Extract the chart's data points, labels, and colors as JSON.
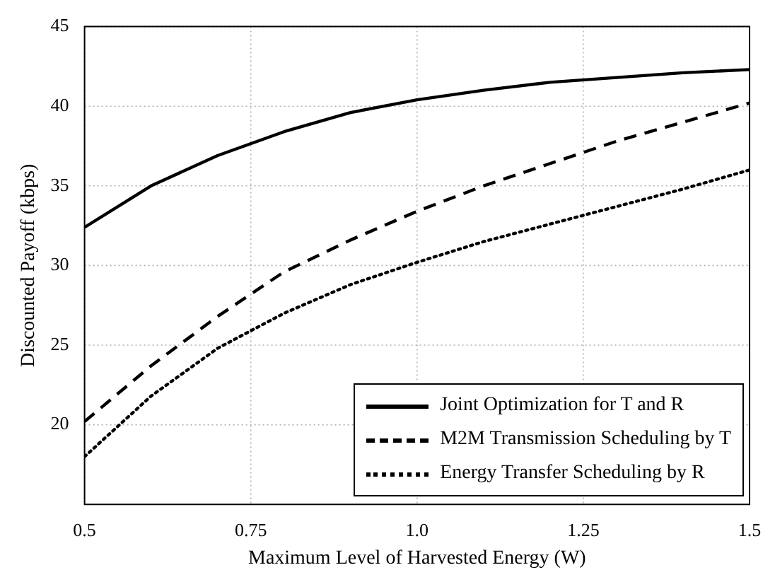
{
  "chart_data": {
    "type": "line",
    "xlabel": "Maximum Level of Harvested Energy (W)",
    "ylabel": "Discounted Payoff (kbps)",
    "x": [
      0.5,
      0.6,
      0.7,
      0.8,
      0.9,
      1.0,
      1.1,
      1.2,
      1.3,
      1.4,
      1.5
    ],
    "series": [
      {
        "name": "Joint Optimization for T and R",
        "color": "#000000",
        "line_style": "solid",
        "values": [
          32.4,
          35,
          36.9,
          38.4,
          39.6,
          40.4,
          41.0,
          41.5,
          41.8,
          42.1,
          42.3
        ]
      },
      {
        "name": "M2M Transmission Scheduling by T",
        "color": "#000000",
        "line_style": "dashed",
        "values": [
          20.2,
          23.7,
          26.8,
          29.6,
          31.6,
          33.4,
          35.0,
          36.4,
          37.8,
          39.0,
          40.2
        ]
      },
      {
        "name": "Energy Transfer Scheduling by R",
        "color": "#000000",
        "line_style": "dotted",
        "values": [
          18,
          21.8,
          24.8,
          27,
          28.8,
          30.2,
          31.5,
          32.6,
          33.7,
          34.8,
          36
        ]
      }
    ],
    "xlim": [
      0.5,
      1.5
    ],
    "xticks": [
      0.5,
      0.75,
      {
        "value": 1,
        "label": "1.0"
      },
      1.25,
      1.5
    ],
    "ylim": [
      15,
      45
    ],
    "yticks": [
      20,
      25,
      30,
      35,
      40,
      45
    ],
    "grid": true,
    "legend": "bottom right",
    "marker": "none"
  }
}
